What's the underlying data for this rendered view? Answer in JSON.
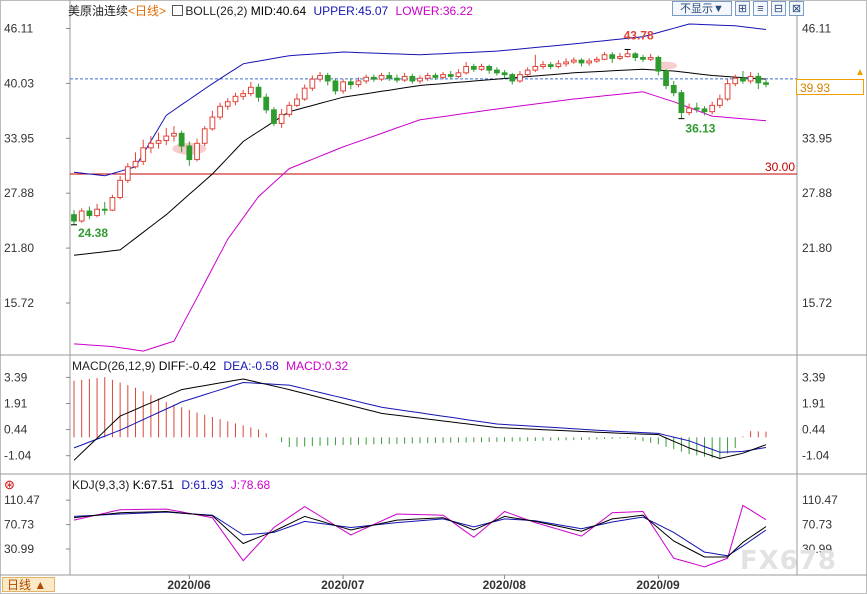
{
  "header": {
    "instrument": "美原油连续",
    "period_link": "<日线>",
    "boll_label": "BOLL(26,2)",
    "boll_mid": "MID:40.64",
    "boll_upper": "UPPER:45.07",
    "boll_lower": "LOWER:36.22",
    "hide_button": "不显示▼",
    "btn_icons": [
      "⊞",
      "≡",
      "⊟",
      "⊠"
    ]
  },
  "macd_header": {
    "label": "MACD(26,12,9)",
    "diff": "DIFF:-0.42",
    "dea": "DEA:-0.58",
    "macd": "MACD:0.32"
  },
  "kdj_header": {
    "label": "KDJ(9,3,3)",
    "k": "K:67.51",
    "d": "D:61.93",
    "j": "J:78.68"
  },
  "current_price": "39.93",
  "mode_button": "日线 ▲",
  "watermark": "FX678",
  "colors": {
    "up": "#e0443a",
    "down": "#2f9b2f",
    "mid": "#000000",
    "upper": "#1414b4",
    "lower": "#cc00cc",
    "ref": "#c00000",
    "price": "#3c6fd6"
  },
  "chart_data": {
    "type": "candlestick",
    "x_labels": [
      "2020/06",
      "2020/07",
      "2020/08",
      "2020/09"
    ],
    "price_axis": {
      "ticks": [
        46.11,
        40.03,
        33.95,
        27.88,
        21.8,
        15.72
      ],
      "range": [
        10.3,
        47.6
      ]
    },
    "reference_line": {
      "value": 30.0,
      "label": "30.00"
    },
    "annotations": [
      {
        "label": "43.78",
        "value": 43.78,
        "kind": "high"
      },
      {
        "label": "36.13",
        "value": 36.13,
        "kind": "low"
      },
      {
        "label": "24.38",
        "value": 24.38,
        "kind": "low"
      }
    ],
    "candles": [
      [
        25.5,
        24.8,
        26.0,
        24.4
      ],
      [
        24.8,
        25.9,
        26.2,
        24.6
      ],
      [
        25.9,
        25.4,
        26.4,
        25.0
      ],
      [
        25.4,
        26.1,
        26.7,
        25.2
      ],
      [
        26.1,
        26.0,
        26.9,
        25.5
      ],
      [
        26.0,
        27.4,
        27.7,
        25.9
      ],
      [
        27.4,
        29.3,
        29.8,
        27.2
      ],
      [
        29.3,
        30.8,
        31.2,
        29.0
      ],
      [
        30.8,
        31.4,
        32.4,
        30.6
      ],
      [
        31.4,
        32.9,
        33.8,
        31.0
      ],
      [
        32.9,
        33.4,
        34.2,
        32.3
      ],
      [
        33.4,
        33.7,
        34.6,
        32.8
      ],
      [
        33.7,
        34.2,
        35.1,
        33.2
      ],
      [
        34.2,
        34.5,
        35.3,
        33.6
      ],
      [
        34.5,
        33.1,
        34.8,
        32.4
      ],
      [
        33.1,
        31.6,
        33.6,
        30.9
      ],
      [
        31.6,
        33.4,
        33.9,
        31.4
      ],
      [
        33.4,
        35.0,
        35.3,
        33.1
      ],
      [
        35.0,
        36.3,
        37.0,
        34.8
      ],
      [
        36.3,
        37.5,
        37.9,
        36.0
      ],
      [
        37.5,
        38.0,
        38.4,
        37.1
      ],
      [
        38.0,
        38.6,
        39.0,
        37.6
      ],
      [
        38.6,
        38.9,
        39.3,
        38.2
      ],
      [
        38.9,
        39.6,
        40.2,
        38.6
      ],
      [
        39.6,
        38.5,
        40.0,
        38.0
      ],
      [
        38.5,
        37.1,
        38.9,
        36.7
      ],
      [
        37.1,
        35.6,
        37.4,
        35.3
      ],
      [
        35.6,
        36.6,
        37.2,
        35.1
      ],
      [
        36.6,
        37.6,
        38.0,
        36.3
      ],
      [
        37.6,
        38.3,
        38.9,
        37.4
      ],
      [
        38.3,
        39.5,
        39.9,
        38.1
      ],
      [
        39.5,
        40.5,
        40.9,
        39.2
      ],
      [
        40.5,
        40.9,
        41.3,
        40.2
      ],
      [
        40.9,
        40.3,
        41.2,
        39.8
      ],
      [
        40.3,
        39.2,
        40.6,
        38.8
      ],
      [
        39.2,
        40.2,
        40.5,
        38.9
      ],
      [
        40.2,
        39.9,
        40.6,
        39.4
      ],
      [
        39.9,
        40.3,
        40.7,
        39.6
      ],
      [
        40.3,
        40.7,
        41.0,
        40.0
      ],
      [
        40.7,
        40.5,
        41.0,
        40.2
      ],
      [
        40.5,
        40.9,
        41.2,
        40.3
      ],
      [
        40.9,
        40.6,
        41.3,
        40.3
      ],
      [
        40.6,
        40.4,
        41.0,
        40.1
      ],
      [
        40.4,
        40.8,
        41.2,
        40.2
      ],
      [
        40.8,
        40.3,
        41.1,
        40.0
      ],
      [
        40.3,
        40.6,
        40.9,
        40.0
      ],
      [
        40.6,
        40.9,
        41.2,
        40.3
      ],
      [
        40.9,
        40.7,
        41.2,
        40.4
      ],
      [
        40.7,
        41.0,
        41.3,
        40.5
      ],
      [
        41.0,
        40.8,
        41.4,
        40.5
      ],
      [
        40.8,
        41.2,
        41.6,
        40.6
      ],
      [
        41.2,
        41.9,
        42.4,
        41.0
      ],
      [
        41.9,
        41.6,
        42.2,
        41.3
      ],
      [
        41.6,
        41.9,
        42.2,
        41.4
      ],
      [
        41.9,
        41.5,
        42.1,
        41.1
      ],
      [
        41.5,
        41.2,
        41.8,
        40.9
      ],
      [
        41.2,
        41.0,
        41.5,
        40.6
      ],
      [
        41.0,
        40.3,
        41.2,
        39.9
      ],
      [
        40.3,
        41.0,
        41.4,
        40.1
      ],
      [
        41.0,
        41.5,
        41.8,
        40.8
      ],
      [
        41.5,
        41.9,
        43.2,
        41.3
      ],
      [
        41.9,
        42.1,
        42.5,
        41.6
      ],
      [
        42.1,
        41.9,
        42.4,
        41.6
      ],
      [
        41.9,
        42.2,
        42.6,
        41.7
      ],
      [
        42.2,
        42.4,
        42.8,
        41.9
      ],
      [
        42.4,
        42.6,
        42.9,
        42.2
      ],
      [
        42.6,
        42.3,
        42.8,
        41.9
      ],
      [
        42.3,
        42.5,
        42.8,
        42.0
      ],
      [
        42.5,
        42.7,
        43.0,
        42.3
      ],
      [
        42.7,
        43.2,
        43.5,
        42.6
      ],
      [
        43.2,
        42.8,
        43.5,
        42.3
      ],
      [
        42.8,
        43.0,
        43.4,
        42.6
      ],
      [
        43.0,
        43.3,
        43.8,
        42.9
      ],
      [
        43.3,
        42.9,
        43.5,
        42.5
      ],
      [
        42.9,
        42.7,
        43.2,
        42.4
      ],
      [
        42.7,
        42.9,
        43.3,
        42.5
      ],
      [
        42.9,
        41.4,
        43.1,
        40.9
      ],
      [
        41.4,
        39.8,
        41.6,
        39.4
      ],
      [
        39.8,
        39.0,
        40.3,
        38.6
      ],
      [
        39.0,
        36.8,
        39.3,
        36.1
      ],
      [
        36.8,
        37.3,
        37.8,
        36.5
      ],
      [
        37.3,
        37.2,
        37.9,
        36.8
      ],
      [
        37.2,
        36.9,
        37.5,
        36.5
      ],
      [
        36.9,
        37.6,
        38.0,
        36.6
      ],
      [
        37.6,
        38.3,
        38.8,
        37.3
      ],
      [
        38.3,
        40.0,
        40.5,
        38.1
      ],
      [
        40.0,
        40.6,
        41.0,
        39.7
      ],
      [
        40.6,
        40.3,
        41.4,
        40.0
      ],
      [
        40.3,
        40.8,
        41.3,
        40.0
      ],
      [
        40.8,
        40.1,
        41.2,
        39.4
      ],
      [
        40.1,
        39.93,
        40.4,
        39.6
      ]
    ],
    "bollinger": {
      "upper": [
        [
          0,
          30.2
        ],
        [
          4,
          29.8
        ],
        [
          8,
          30.8
        ],
        [
          12,
          36.5
        ],
        [
          18,
          40.0
        ],
        [
          22,
          42.2
        ],
        [
          28,
          43.1
        ],
        [
          35,
          43.5
        ],
        [
          45,
          43.2
        ],
        [
          55,
          43.6
        ],
        [
          65,
          44.4
        ],
        [
          74,
          45.2
        ],
        [
          80,
          46.6
        ],
        [
          86,
          46.4
        ],
        [
          90,
          46.0
        ]
      ],
      "mid": [
        [
          0,
          21.0
        ],
        [
          6,
          21.6
        ],
        [
          12,
          25.5
        ],
        [
          18,
          30.0
        ],
        [
          22,
          33.6
        ],
        [
          28,
          36.9
        ],
        [
          35,
          38.5
        ],
        [
          45,
          39.8
        ],
        [
          55,
          40.5
        ],
        [
          65,
          41.2
        ],
        [
          74,
          41.6
        ],
        [
          78,
          41.4
        ],
        [
          83,
          40.9
        ],
        [
          90,
          40.5
        ]
      ],
      "lower": [
        [
          0,
          11.2
        ],
        [
          5,
          10.9
        ],
        [
          9,
          10.4
        ],
        [
          13,
          11.5
        ],
        [
          16,
          16.3
        ],
        [
          20,
          22.8
        ],
        [
          24,
          27.5
        ],
        [
          28,
          30.6
        ],
        [
          35,
          33.0
        ],
        [
          45,
          36.0
        ],
        [
          55,
          37.2
        ],
        [
          65,
          38.3
        ],
        [
          74,
          39.1
        ],
        [
          78,
          38.0
        ],
        [
          83,
          36.4
        ],
        [
          90,
          35.9
        ]
      ]
    },
    "macd": {
      "axis_ticks": [
        3.39,
        1.91,
        0.44,
        -1.04
      ],
      "range": [
        -1.85,
        3.75
      ],
      "diff": [
        [
          0,
          -1.3
        ],
        [
          6,
          1.2
        ],
        [
          14,
          2.7
        ],
        [
          22,
          3.3
        ],
        [
          28,
          2.7
        ],
        [
          40,
          1.35
        ],
        [
          55,
          0.55
        ],
        [
          70,
          0.25
        ],
        [
          76,
          0.15
        ],
        [
          80,
          -0.6
        ],
        [
          84,
          -1.2
        ],
        [
          87,
          -0.9
        ],
        [
          90,
          -0.42
        ]
      ],
      "dea": [
        [
          0,
          -0.6
        ],
        [
          6,
          0.4
        ],
        [
          14,
          2.0
        ],
        [
          22,
          3.1
        ],
        [
          28,
          2.95
        ],
        [
          40,
          1.7
        ],
        [
          55,
          0.75
        ],
        [
          70,
          0.35
        ],
        [
          76,
          0.22
        ],
        [
          80,
          -0.2
        ],
        [
          84,
          -0.85
        ],
        [
          87,
          -0.8
        ],
        [
          90,
          -0.58
        ]
      ],
      "hist": [
        [
          0,
          3.2
        ],
        [
          4,
          3.4
        ],
        [
          8,
          2.8
        ],
        [
          12,
          2.0
        ],
        [
          16,
          1.4
        ],
        [
          20,
          0.9
        ],
        [
          24,
          0.45
        ],
        [
          26,
          0.0
        ],
        [
          28,
          -0.55
        ],
        [
          34,
          -0.45
        ],
        [
          44,
          -0.35
        ],
        [
          56,
          -0.25
        ],
        [
          66,
          -0.15
        ],
        [
          72,
          -0.05
        ],
        [
          76,
          -0.4
        ],
        [
          80,
          -0.95
        ],
        [
          84,
          -1.25
        ],
        [
          86,
          -0.6
        ],
        [
          87,
          0.05
        ],
        [
          88,
          0.35
        ],
        [
          90,
          0.32
        ]
      ]
    },
    "kdj": {
      "axis_ticks": [
        110.47,
        70.73,
        30.99
      ],
      "range": [
        -8,
        127
      ],
      "k": [
        [
          0,
          82
        ],
        [
          6,
          90
        ],
        [
          12,
          92
        ],
        [
          18,
          85
        ],
        [
          22,
          40
        ],
        [
          26,
          60
        ],
        [
          30,
          84
        ],
        [
          36,
          62
        ],
        [
          42,
          78
        ],
        [
          48,
          82
        ],
        [
          52,
          62
        ],
        [
          56,
          84
        ],
        [
          60,
          76
        ],
        [
          66,
          60
        ],
        [
          70,
          80
        ],
        [
          74,
          86
        ],
        [
          78,
          44
        ],
        [
          82,
          18
        ],
        [
          85,
          18
        ],
        [
          87,
          42
        ],
        [
          90,
          67.51
        ]
      ],
      "d": [
        [
          0,
          84
        ],
        [
          6,
          88
        ],
        [
          12,
          91
        ],
        [
          18,
          86
        ],
        [
          22,
          54
        ],
        [
          26,
          58
        ],
        [
          30,
          76
        ],
        [
          36,
          66
        ],
        [
          42,
          74
        ],
        [
          48,
          80
        ],
        [
          52,
          67
        ],
        [
          56,
          80
        ],
        [
          60,
          77
        ],
        [
          66,
          64
        ],
        [
          70,
          75
        ],
        [
          74,
          83
        ],
        [
          78,
          58
        ],
        [
          82,
          26
        ],
        [
          85,
          20
        ],
        [
          87,
          36
        ],
        [
          90,
          61.93
        ]
      ],
      "j": [
        [
          0,
          78
        ],
        [
          6,
          95
        ],
        [
          12,
          96
        ],
        [
          18,
          82
        ],
        [
          22,
          12
        ],
        [
          26,
          66
        ],
        [
          30,
          100
        ],
        [
          36,
          54
        ],
        [
          42,
          88
        ],
        [
          48,
          86
        ],
        [
          52,
          50
        ],
        [
          56,
          92
        ],
        [
          60,
          74
        ],
        [
          66,
          52
        ],
        [
          70,
          90
        ],
        [
          74,
          92
        ],
        [
          78,
          16
        ],
        [
          82,
          2
        ],
        [
          85,
          16
        ],
        [
          87,
          102
        ],
        [
          90,
          78.68
        ]
      ]
    }
  }
}
